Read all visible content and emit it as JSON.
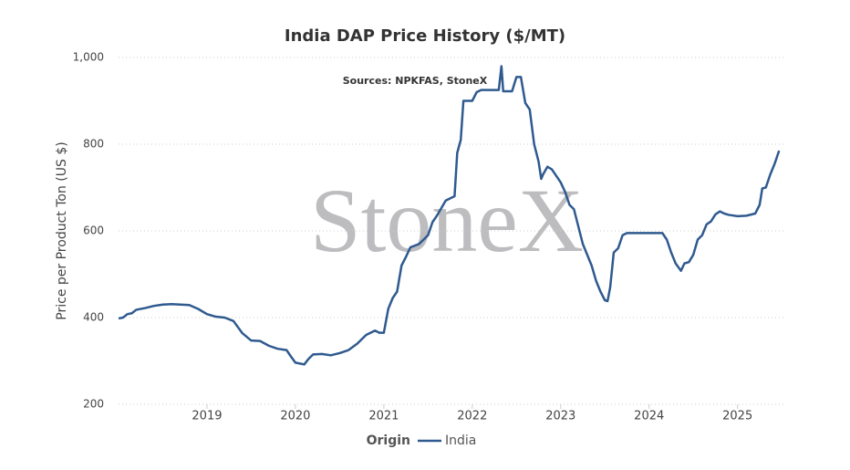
{
  "chart_data": {
    "type": "line",
    "title": "India DAP Price History ($/MT)",
    "annotation": "Sources: NPKFAS, StoneX",
    "watermark": "StoneX",
    "y_label": "Price per Product Ton (US $)",
    "legend_title": "Origin",
    "xlim": [
      2018.0,
      2025.55
    ],
    "xticks": [
      2019,
      2020,
      2021,
      2022,
      2023,
      2024,
      2025
    ],
    "ylim": [
      200,
      1000
    ],
    "yticks": [
      200,
      400,
      600,
      800,
      {
        "value": 1000,
        "label": "1,000"
      }
    ],
    "grid": true,
    "x": [
      2018.0,
      2018.05,
      2018.1,
      2018.15,
      2018.2,
      2018.3,
      2018.4,
      2018.5,
      2018.6,
      2018.7,
      2018.8,
      2018.9,
      2019.0,
      2019.1,
      2019.2,
      2019.3,
      2019.4,
      2019.5,
      2019.6,
      2019.7,
      2019.8,
      2019.9,
      2019.95,
      2020.0,
      2020.1,
      2020.15,
      2020.2,
      2020.3,
      2020.4,
      2020.5,
      2020.6,
      2020.7,
      2020.8,
      2020.9,
      2020.95,
      2021.0,
      2021.05,
      2021.1,
      2021.15,
      2021.2,
      2021.25,
      2021.3,
      2021.4,
      2021.5,
      2021.55,
      2021.6,
      2021.7,
      2021.8,
      2021.83,
      2021.87,
      2021.9,
      2022.0,
      2022.05,
      2022.1,
      2022.2,
      2022.3,
      2022.33,
      2022.35,
      2022.45,
      2022.5,
      2022.55,
      2022.6,
      2022.65,
      2022.7,
      2022.75,
      2022.78,
      2022.8,
      2022.85,
      2022.9,
      2023.0,
      2023.05,
      2023.1,
      2023.15,
      2023.2,
      2023.25,
      2023.35,
      2023.4,
      2023.45,
      2023.5,
      2023.53,
      2023.56,
      2023.6,
      2023.65,
      2023.7,
      2023.75,
      2024.15,
      2024.2,
      2024.25,
      2024.3,
      2024.36,
      2024.4,
      2024.45,
      2024.5,
      2024.55,
      2024.6,
      2024.65,
      2024.7,
      2024.75,
      2024.8,
      2024.85,
      2024.9,
      2025.0,
      2025.1,
      2025.2,
      2025.25,
      2025.28,
      2025.32,
      2025.37,
      2025.42,
      2025.47
    ],
    "series": [
      {
        "name": "India",
        "color": "#2f5a8f",
        "values": [
          398,
          400,
          408,
          410,
          418,
          422,
          427,
          430,
          431,
          430,
          429,
          420,
          408,
          402,
          400,
          392,
          364,
          347,
          346,
          335,
          328,
          325,
          310,
          296,
          292,
          305,
          315,
          316,
          313,
          318,
          325,
          340,
          360,
          370,
          365,
          365,
          420,
          445,
          460,
          520,
          540,
          562,
          570,
          590,
          620,
          635,
          670,
          680,
          780,
          810,
          900,
          900,
          920,
          925,
          925,
          925,
          980,
          922,
          922,
          955,
          955,
          895,
          880,
          800,
          760,
          720,
          730,
          748,
          742,
          712,
          690,
          660,
          650,
          610,
          570,
          520,
          485,
          460,
          440,
          438,
          470,
          550,
          560,
          590,
          595,
          595,
          580,
          550,
          525,
          508,
          525,
          528,
          545,
          580,
          590,
          615,
          622,
          638,
          645,
          640,
          637,
          634,
          635,
          640,
          660,
          698,
          700,
          730,
          755,
          785
        ]
      }
    ]
  }
}
